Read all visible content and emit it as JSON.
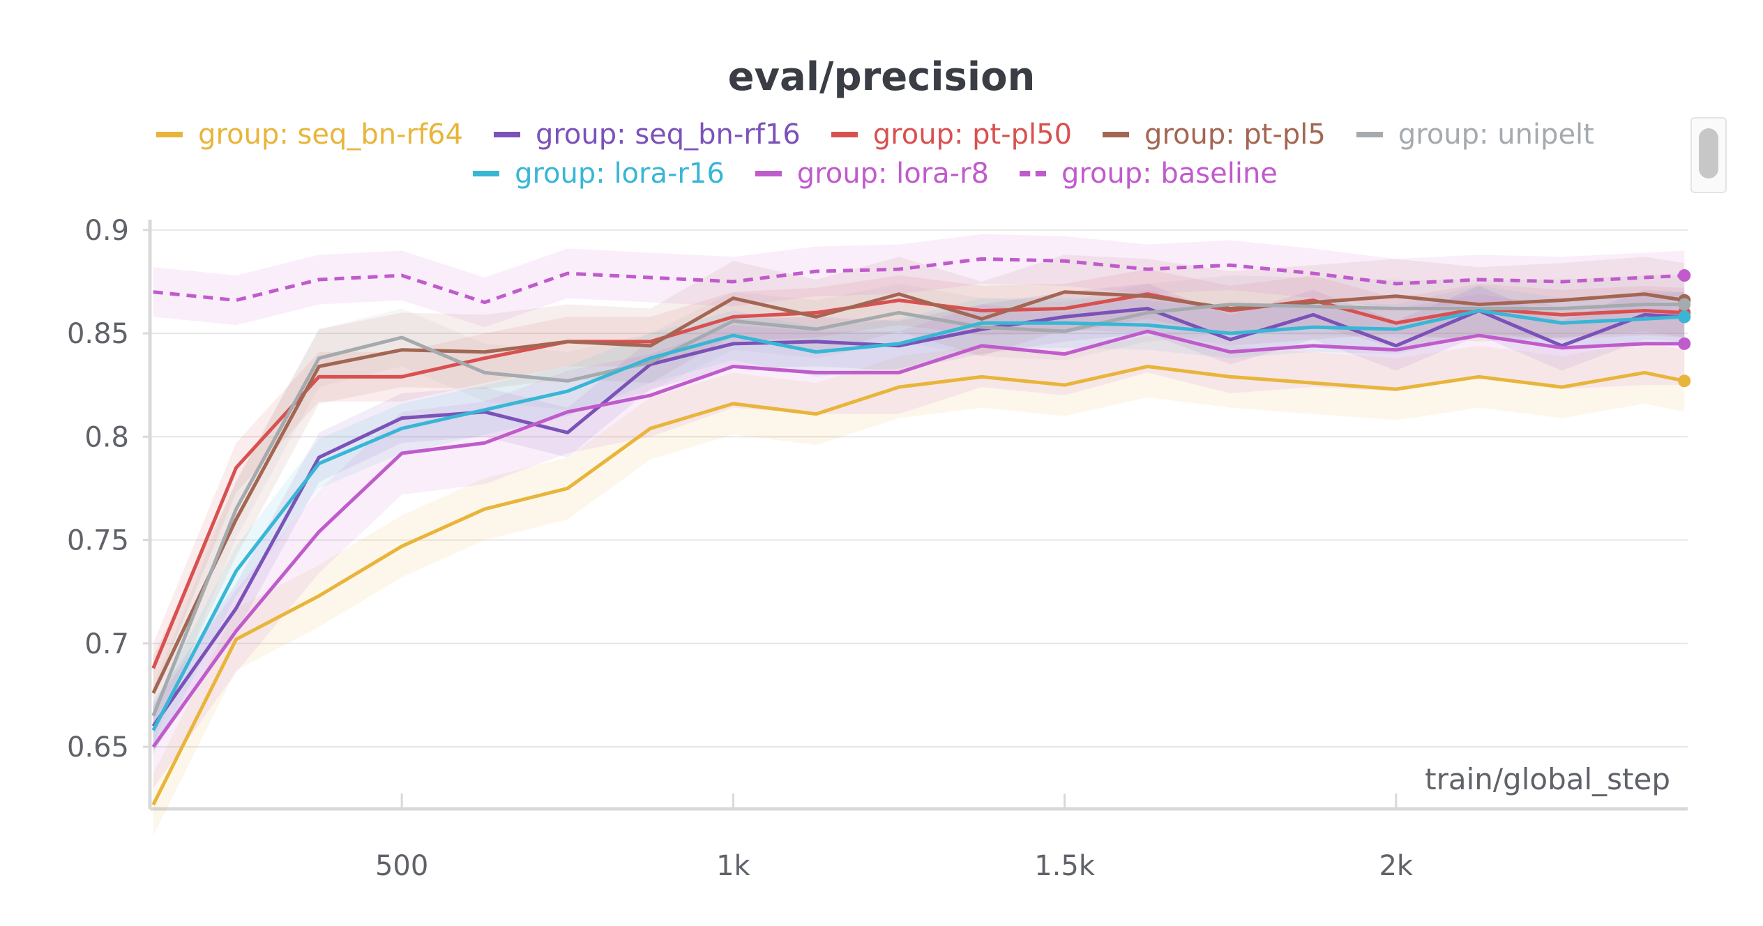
{
  "chart_data": {
    "type": "line",
    "title": "eval/precision",
    "xlabel": "train/global_step",
    "ylabel": "",
    "xlim": [
      120,
      2440
    ],
    "ylim": [
      0.62,
      0.905
    ],
    "x_ticks": [
      500,
      1000,
      1500,
      2000
    ],
    "x_tick_labels": [
      "500",
      "1k",
      "1.5k",
      "2k"
    ],
    "y_ticks": [
      0.65,
      0.7,
      0.75,
      0.8,
      0.85,
      0.9
    ],
    "y_tick_labels": [
      "0.65",
      "0.7",
      "0.75",
      "0.8",
      "0.85",
      "0.9"
    ],
    "grid": true,
    "legend_position": "top",
    "x": [
      125,
      250,
      375,
      500,
      625,
      750,
      875,
      1000,
      1125,
      1250,
      1375,
      1500,
      1625,
      1750,
      1875,
      2000,
      2125,
      2250,
      2375,
      2435
    ],
    "series": [
      {
        "name": "group: seq_bn-rf64",
        "color": "#e8b53a",
        "dashed": false,
        "values": [
          0.622,
          0.702,
          0.723,
          0.747,
          0.765,
          0.775,
          0.804,
          0.816,
          0.811,
          0.824,
          0.829,
          0.825,
          0.834,
          0.829,
          0.826,
          0.823,
          0.829,
          0.824,
          0.831,
          0.827
        ],
        "band": 0.015
      },
      {
        "name": "group: seq_bn-rf16",
        "color": "#7b52b8",
        "dashed": false,
        "values": [
          0.66,
          0.717,
          0.79,
          0.809,
          0.812,
          0.802,
          0.835,
          0.845,
          0.846,
          0.844,
          0.852,
          0.858,
          0.862,
          0.847,
          0.859,
          0.844,
          0.861,
          0.844,
          0.859,
          0.858
        ],
        "band": 0.012
      },
      {
        "name": "group: pt-pl50",
        "color": "#d95050",
        "dashed": false,
        "values": [
          0.688,
          0.785,
          0.829,
          0.829,
          0.838,
          0.846,
          0.846,
          0.858,
          0.86,
          0.866,
          0.861,
          0.862,
          0.869,
          0.861,
          0.866,
          0.855,
          0.862,
          0.859,
          0.861,
          0.86
        ],
        "band": 0.012
      },
      {
        "name": "group: pt-pl5",
        "color": "#a36652",
        "dashed": false,
        "values": [
          0.676,
          0.76,
          0.834,
          0.842,
          0.841,
          0.846,
          0.844,
          0.867,
          0.858,
          0.869,
          0.857,
          0.87,
          0.868,
          0.862,
          0.865,
          0.868,
          0.864,
          0.866,
          0.869,
          0.866
        ],
        "band": 0.018
      },
      {
        "name": "group: unipelt",
        "color": "#a4aaae",
        "dashed": false,
        "values": [
          0.665,
          0.765,
          0.838,
          0.848,
          0.831,
          0.827,
          0.836,
          0.856,
          0.852,
          0.86,
          0.853,
          0.851,
          0.86,
          0.864,
          0.863,
          0.862,
          0.862,
          0.862,
          0.864,
          0.864
        ],
        "band": 0.014
      },
      {
        "name": "group: lora-r16",
        "color": "#38b6d6",
        "dashed": false,
        "values": [
          0.658,
          0.735,
          0.787,
          0.804,
          0.813,
          0.822,
          0.838,
          0.849,
          0.841,
          0.845,
          0.855,
          0.855,
          0.854,
          0.85,
          0.853,
          0.852,
          0.861,
          0.855,
          0.857,
          0.858
        ],
        "band": 0.012
      },
      {
        "name": "group: lora-r8",
        "color": "#c05bcc",
        "dashed": false,
        "values": [
          0.65,
          0.706,
          0.754,
          0.792,
          0.797,
          0.812,
          0.82,
          0.834,
          0.831,
          0.831,
          0.844,
          0.84,
          0.851,
          0.841,
          0.844,
          0.842,
          0.849,
          0.843,
          0.845,
          0.845
        ],
        "band": 0.02
      },
      {
        "name": "group: baseline",
        "color": "#c05bcc",
        "dashed": true,
        "values": [
          0.87,
          0.866,
          0.876,
          0.878,
          0.865,
          0.879,
          0.877,
          0.875,
          0.88,
          0.881,
          0.886,
          0.885,
          0.881,
          0.883,
          0.879,
          0.874,
          0.876,
          0.875,
          0.877,
          0.878
        ],
        "band": 0.012
      }
    ]
  }
}
